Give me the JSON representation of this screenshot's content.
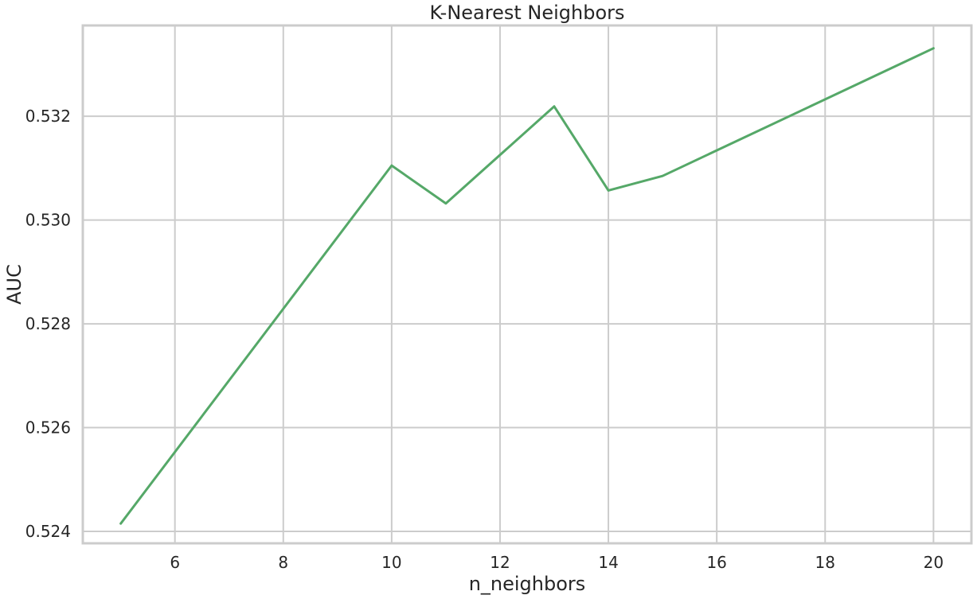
{
  "chart_data": {
    "type": "line",
    "title": "K-Nearest Neighbors",
    "xlabel": "n_neighbors",
    "ylabel": "AUC",
    "xlim": [
      4.3,
      20.7
    ],
    "ylim": [
      0.52377,
      0.53375
    ],
    "xticks": [
      6,
      8,
      10,
      12,
      14,
      16,
      18,
      20
    ],
    "xtick_labels": [
      "6",
      "8",
      "10",
      "12",
      "14",
      "16",
      "18",
      "20"
    ],
    "yticks": [
      0.524,
      0.526,
      0.528,
      0.53,
      0.532
    ],
    "ytick_labels": [
      "0.524",
      "0.526",
      "0.528",
      "0.530",
      "0.532"
    ],
    "grid": true,
    "x": [
      5,
      10,
      11,
      13,
      14,
      15,
      20
    ],
    "series": [
      {
        "color": "#55a868",
        "values": [
          0.52415,
          0.53105,
          0.53032,
          0.53219,
          0.53057,
          0.53085,
          0.53331
        ]
      }
    ]
  }
}
